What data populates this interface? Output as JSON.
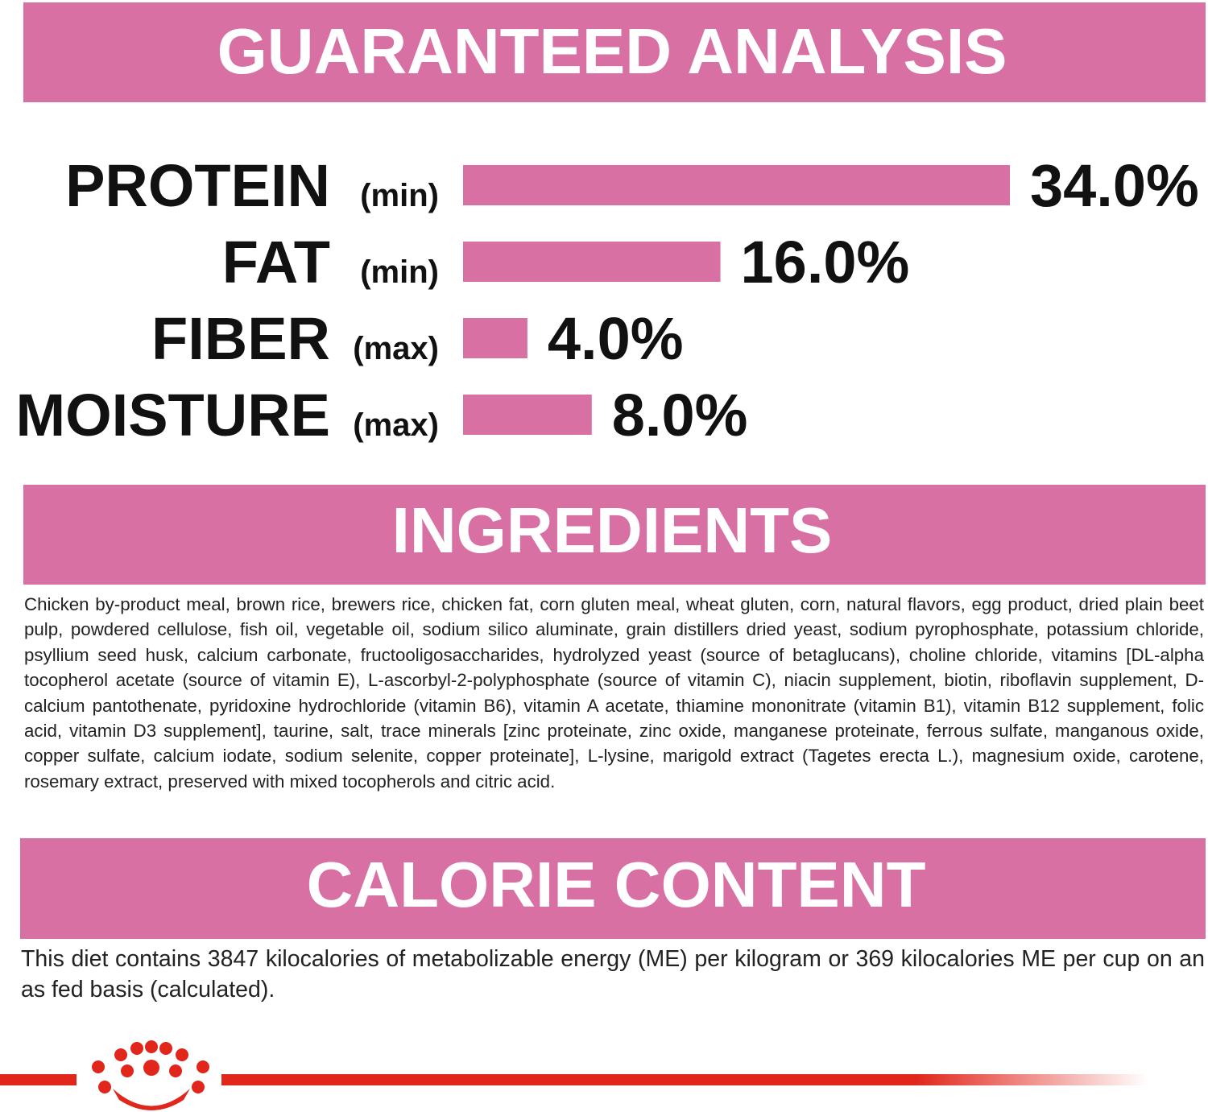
{
  "sections": {
    "analysis_title": "GUARANTEED ANALYSIS",
    "ingredients_title": "INGREDIENTS",
    "ingredients_text": "Chicken by-product meal, brown rice, brewers rice, chicken fat, corn gluten meal, wheat gluten, corn, natural flavors, egg product, dried plain beet pulp, powdered cellulose, fish oil, vegetable oil, sodium silico aluminate, grain distillers dried yeast, sodium pyrophosphate, potassium chloride, psyllium seed husk, calcium carbonate, fructooligosaccharides, hydrolyzed yeast (source of betaglucans), choline chloride, vitamins [DL-alpha tocopherol acetate (source of vitamin E), L-ascorbyl-2-polyphosphate (source of vitamin C), niacin supplement, biotin, riboflavin supplement, D-calcium pantothenate, pyridoxine hydrochloride (vitamin B6), vitamin A acetate, thiamine mononitrate (vitamin B1), vitamin B12 supplement, folic acid, vitamin D3 supplement], taurine, salt, trace minerals [zinc proteinate, zinc oxide, manganese proteinate, ferrous sulfate, manganous oxide, copper sulfate, calcium iodate, sodium selenite, copper proteinate], L-lysine, marigold extract (Tagetes erecta L.), magnesium oxide, carotene, rosemary extract, preserved with mixed tocopherols and citric acid.",
    "calorie_title": "CALORIE CONTENT",
    "calorie_text": "This diet contains 3847 kilocalories of metabolizable energy (ME) per kilogram or 369 kilocalories ME per cup on an as fed basis (calculated)."
  },
  "chart_data": {
    "type": "hbar",
    "categories": [
      "PROTEIN",
      "FAT",
      "FIBER",
      "MOISTURE"
    ],
    "qualifiers": [
      "(min)",
      "(min)",
      "(max)",
      "(max)"
    ],
    "values": [
      34.0,
      16.0,
      4.0,
      8.0
    ],
    "value_labels": [
      "34.0%",
      "16.0%",
      "4.0%",
      "8.0%"
    ],
    "color": "#d870a4"
  }
}
